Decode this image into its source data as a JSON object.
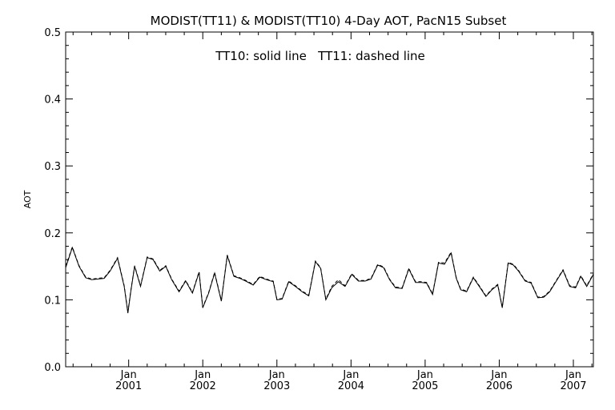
{
  "chart_data": {
    "type": "line",
    "title": "MODIST(TT11) & MODIST(TT10) 4-Day AOT, PacN15 Subset",
    "annotation": "TT10: solid line   TT11: dashed line",
    "xlabel": "",
    "ylabel": "AOT",
    "xlim": [
      2000.15,
      2007.27
    ],
    "ylim": [
      0.0,
      0.5
    ],
    "yticks": [
      0.0,
      0.1,
      0.2,
      0.3,
      0.4,
      0.5
    ],
    "ytick_labels": [
      "0.0",
      "0.1",
      "0.2",
      "0.3",
      "0.4",
      "0.5"
    ],
    "xticks": [
      {
        "x": 2001.0,
        "month": "Jan",
        "year": "2001"
      },
      {
        "x": 2002.0,
        "month": "Jan",
        "year": "2002"
      },
      {
        "x": 2003.0,
        "month": "Jan",
        "year": "2003"
      },
      {
        "x": 2004.0,
        "month": "Jan",
        "year": "2004"
      },
      {
        "x": 2005.0,
        "month": "Jan",
        "year": "2005"
      },
      {
        "x": 2006.0,
        "month": "Jan",
        "year": "2006"
      },
      {
        "x": 2007.0,
        "month": "Jan",
        "year": "2007"
      }
    ],
    "grid": false,
    "series": [
      {
        "style": "solid",
        "color": "#000000",
        "x": [
          2000.15,
          2000.24,
          2000.33,
          2000.42,
          2000.5,
          2000.58,
          2000.67,
          2000.75,
          2000.85,
          2000.94,
          2000.99,
          2001.03,
          2001.08,
          2001.16,
          2001.25,
          2001.33,
          2001.42,
          2001.5,
          2001.58,
          2001.68,
          2001.77,
          2001.86,
          2001.95,
          2002.0,
          2002.08,
          2002.16,
          2002.25,
          2002.33,
          2002.42,
          2002.5,
          2002.58,
          2002.68,
          2002.77,
          2002.86,
          2002.95,
          2003.0,
          2003.07,
          2003.16,
          2003.25,
          2003.34,
          2003.43,
          2003.52,
          2003.59,
          2003.66,
          2003.74,
          2003.83,
          2003.92,
          2004.01,
          2004.1,
          2004.19,
          2004.27,
          2004.36,
          2004.44,
          2004.52,
          2004.6,
          2004.69,
          2004.78,
          2004.87,
          2004.95,
          2005.02,
          2005.1,
          2005.18,
          2005.26,
          2005.35,
          2005.42,
          2005.48,
          2005.56,
          2005.65,
          2005.73,
          2005.82,
          2005.9,
          2005.98,
          2006.04,
          2006.12,
          2006.19,
          2006.26,
          2006.35,
          2006.43,
          2006.52,
          2006.6,
          2006.68,
          2006.77,
          2006.86,
          2006.95,
          2007.03,
          2007.1,
          2007.18,
          2007.27
        ],
        "values": [
          0.148,
          0.178,
          0.15,
          0.133,
          0.13,
          0.131,
          0.132,
          0.143,
          0.162,
          0.12,
          0.08,
          0.113,
          0.15,
          0.12,
          0.163,
          0.16,
          0.143,
          0.15,
          0.13,
          0.112,
          0.128,
          0.11,
          0.141,
          0.088,
          0.11,
          0.14,
          0.098,
          0.166,
          0.135,
          0.132,
          0.128,
          0.122,
          0.134,
          0.13,
          0.127,
          0.1,
          0.101,
          0.127,
          0.12,
          0.112,
          0.106,
          0.157,
          0.147,
          0.1,
          0.118,
          0.127,
          0.12,
          0.138,
          0.128,
          0.128,
          0.131,
          0.152,
          0.148,
          0.13,
          0.118,
          0.117,
          0.146,
          0.126,
          0.126,
          0.125,
          0.108,
          0.155,
          0.153,
          0.17,
          0.132,
          0.115,
          0.112,
          0.133,
          0.12,
          0.105,
          0.115,
          0.122,
          0.088,
          0.155,
          0.152,
          0.143,
          0.128,
          0.125,
          0.103,
          0.104,
          0.112,
          0.128,
          0.144,
          0.12,
          0.118,
          0.135,
          0.12,
          0.138
        ]
      },
      {
        "style": "dashed",
        "color": "#000000",
        "x": [
          2000.15,
          2000.24,
          2000.33,
          2000.42,
          2000.5,
          2000.58,
          2000.67,
          2000.75,
          2000.85,
          2000.94,
          2000.99,
          2001.03,
          2001.08,
          2001.16,
          2001.25,
          2001.33,
          2001.42,
          2001.5,
          2001.58,
          2001.68,
          2001.77,
          2001.86,
          2001.95,
          2002.0,
          2002.08,
          2002.16,
          2002.25,
          2002.33,
          2002.42,
          2002.5,
          2002.58,
          2002.68,
          2002.77,
          2002.86,
          2002.95,
          2003.0,
          2003.07,
          2003.16,
          2003.25,
          2003.34,
          2003.43,
          2003.52,
          2003.59,
          2003.66,
          2003.74,
          2003.83,
          2003.92,
          2004.01,
          2004.1,
          2004.19,
          2004.27,
          2004.36,
          2004.44,
          2004.52,
          2004.6,
          2004.69,
          2004.78,
          2004.87,
          2004.95,
          2005.02,
          2005.1,
          2005.18,
          2005.26,
          2005.35,
          2005.42,
          2005.48,
          2005.56,
          2005.65,
          2005.73,
          2005.82,
          2005.9,
          2005.98,
          2006.04,
          2006.12,
          2006.19,
          2006.26,
          2006.35,
          2006.43,
          2006.52,
          2006.6,
          2006.68,
          2006.77,
          2006.86,
          2006.95,
          2007.03,
          2007.1,
          2007.18,
          2007.27
        ],
        "values": [
          0.15,
          0.179,
          0.151,
          0.134,
          0.131,
          0.132,
          0.133,
          0.144,
          0.163,
          0.121,
          0.082,
          0.114,
          0.151,
          0.121,
          0.164,
          0.161,
          0.144,
          0.151,
          0.131,
          0.113,
          0.129,
          0.111,
          0.142,
          0.089,
          0.111,
          0.141,
          0.099,
          0.167,
          0.136,
          0.133,
          0.129,
          0.123,
          0.135,
          0.131,
          0.128,
          0.101,
          0.102,
          0.128,
          0.121,
          0.113,
          0.107,
          0.158,
          0.148,
          0.101,
          0.12,
          0.13,
          0.121,
          0.139,
          0.129,
          0.129,
          0.132,
          0.153,
          0.149,
          0.131,
          0.119,
          0.118,
          0.147,
          0.127,
          0.127,
          0.126,
          0.109,
          0.156,
          0.155,
          0.171,
          0.133,
          0.116,
          0.113,
          0.134,
          0.121,
          0.106,
          0.116,
          0.123,
          0.089,
          0.156,
          0.153,
          0.144,
          0.129,
          0.126,
          0.104,
          0.105,
          0.113,
          0.129,
          0.145,
          0.121,
          0.119,
          0.136,
          0.121,
          0.139
        ]
      }
    ]
  }
}
